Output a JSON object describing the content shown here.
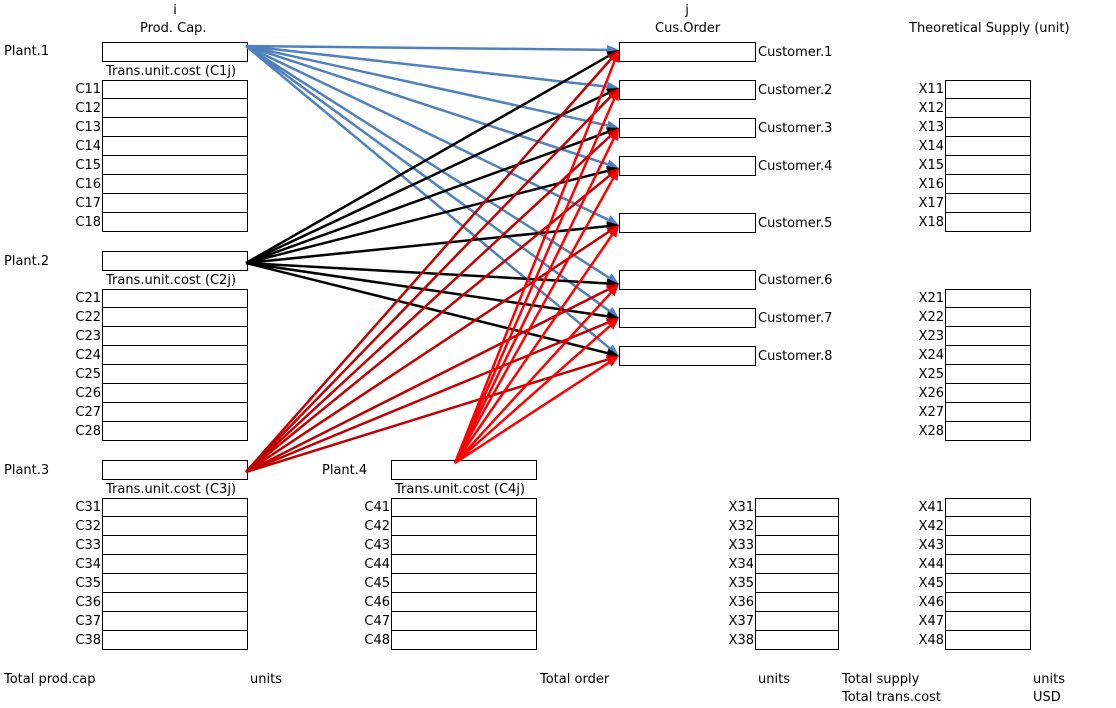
{
  "colors": {
    "plant1": "#4f81bd",
    "plant2": "#000000",
    "plant3": "#c00000",
    "plant4": "#ff0000"
  },
  "headers": {
    "i_label": "i",
    "prod_cap": "Prod. Cap.",
    "j_label": "j",
    "cus_order": "Cus.Order",
    "theoretical_supply": "Theoretical Supply (unit)"
  },
  "plants": [
    {
      "name": "Plant.1",
      "cost_title": "Trans.unit.cost (C1j)",
      "costs": [
        "C11",
        "C12",
        "C13",
        "C14",
        "C15",
        "C16",
        "C17",
        "C18"
      ]
    },
    {
      "name": "Plant.2",
      "cost_title": "Trans.unit.cost (C2j)",
      "costs": [
        "C21",
        "C22",
        "C23",
        "C24",
        "C25",
        "C26",
        "C27",
        "C28"
      ]
    },
    {
      "name": "Plant.3",
      "cost_title": "Trans.unit.cost (C3j)",
      "costs": [
        "C31",
        "C32",
        "C33",
        "C34",
        "C35",
        "C36",
        "C37",
        "C38"
      ]
    },
    {
      "name": "Plant.4",
      "cost_title": "Trans.unit.cost (C4j)",
      "costs": [
        "C41",
        "C42",
        "C43",
        "C44",
        "C45",
        "C46",
        "C47",
        "C48"
      ]
    }
  ],
  "customers": [
    "Customer.1",
    "Customer.2",
    "Customer.3",
    "Customer.4",
    "Customer.5",
    "Customer.6",
    "Customer.7",
    "Customer.8"
  ],
  "supply": {
    "x1": [
      "X11",
      "X12",
      "X13",
      "X14",
      "X15",
      "X16",
      "X17",
      "X18"
    ],
    "x2": [
      "X21",
      "X22",
      "X23",
      "X24",
      "X25",
      "X26",
      "X27",
      "X28"
    ],
    "x3": [
      "X31",
      "X32",
      "X33",
      "X34",
      "X35",
      "X36",
      "X37",
      "X38"
    ],
    "x4": [
      "X41",
      "X42",
      "X43",
      "X44",
      "X45",
      "X46",
      "X47",
      "X48"
    ]
  },
  "totals": {
    "prod_cap_label": "Total prod.cap",
    "prod_cap_unit": "units",
    "order_label": "Total order",
    "order_unit": "units",
    "supply_label": "Total supply",
    "supply_unit": "units",
    "trans_cost_label": "Total trans.cost",
    "trans_cost_unit": "USD"
  }
}
